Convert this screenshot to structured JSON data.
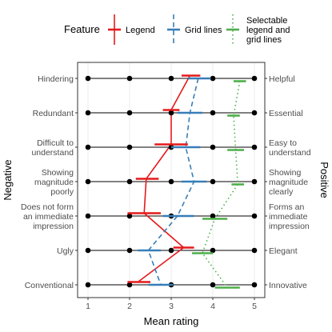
{
  "chart_data": {
    "type": "line",
    "xlabel": "Mean rating",
    "ylabel_left": "Negative",
    "ylabel_right": "Positive",
    "xlim": [
      0.75,
      5.25
    ],
    "x_ticks": [
      "1",
      "2",
      "3",
      "4",
      "5"
    ],
    "legend": {
      "title": "Feature",
      "placement": "top",
      "entries": [
        {
          "label": "Legend",
          "label_lines": [
            "Legend"
          ],
          "color": "#e41a1c",
          "linestyle": "solid"
        },
        {
          "label": "Grid lines",
          "label_lines": [
            "Grid lines"
          ],
          "color": "#377eb8",
          "linestyle": "dashed"
        },
        {
          "label": "Selectable legend and grid lines",
          "label_lines": [
            "Selectable",
            "legend and",
            "grid lines"
          ],
          "color": "#4daf4a",
          "linestyle": "dotted"
        }
      ]
    },
    "grid": true,
    "scale_points": [
      1,
      2,
      3,
      4,
      5
    ],
    "rows": [
      {
        "negative_lines": [
          "Hindering"
        ],
        "positive_lines": [
          "Helpful"
        ]
      },
      {
        "negative_lines": [
          "Redundant"
        ],
        "positive_lines": [
          "Essential"
        ]
      },
      {
        "negative_lines": [
          "Difficult to",
          "understand"
        ],
        "positive_lines": [
          "Easy to",
          "understand"
        ]
      },
      {
        "negative_lines": [
          "Showing",
          "magnitude",
          "poorly"
        ],
        "positive_lines": [
          "Showing",
          "magnitude",
          "clearly"
        ]
      },
      {
        "negative_lines": [
          "Does not form",
          "an immediate",
          "impression"
        ],
        "positive_lines": [
          "Forms an",
          "immediate",
          "impression"
        ]
      },
      {
        "negative_lines": [
          "Ugly"
        ],
        "positive_lines": [
          "Elegant"
        ]
      },
      {
        "negative_lines": [
          "Conventional"
        ],
        "positive_lines": [
          "Innovative"
        ]
      }
    ],
    "series": [
      {
        "name": "Legend",
        "color": "#e41a1c",
        "linestyle": "solid",
        "values": [
          3.45,
          3.0,
          3.0,
          2.4,
          2.35,
          3.3,
          2.2
        ],
        "ci_low": [
          3.25,
          2.8,
          2.6,
          2.15,
          1.95,
          3.05,
          1.95
        ],
        "ci_high": [
          3.7,
          3.2,
          3.4,
          2.7,
          2.75,
          3.55,
          2.5
        ]
      },
      {
        "name": "Grid lines",
        "color": "#377eb8",
        "linestyle": "dashed",
        "values": [
          3.65,
          3.45,
          3.35,
          3.55,
          3.15,
          2.45,
          2.75
        ],
        "ci_low": [
          3.4,
          3.15,
          3.0,
          3.25,
          2.8,
          2.2,
          2.45
        ],
        "ci_high": [
          3.95,
          3.75,
          3.7,
          3.85,
          3.55,
          2.75,
          3.05
        ]
      },
      {
        "name": "Selectable legend and grid lines",
        "color": "#4daf4a",
        "linestyle": "dotted",
        "values": [
          4.65,
          4.5,
          4.55,
          4.6,
          4.05,
          3.75,
          4.35
        ],
        "ci_low": [
          4.5,
          4.35,
          4.35,
          4.45,
          3.75,
          3.5,
          4.05
        ],
        "ci_high": [
          4.8,
          4.65,
          4.75,
          4.75,
          4.35,
          4.0,
          4.65
        ]
      }
    ]
  }
}
